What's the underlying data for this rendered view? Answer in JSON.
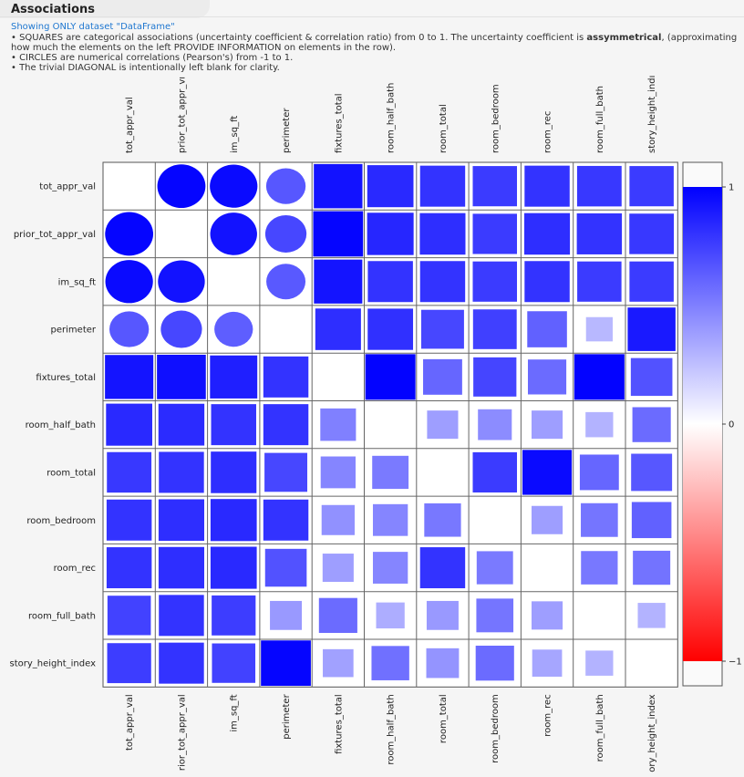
{
  "header": {
    "title": "Associations",
    "subtitle": "Showing ONLY dataset \"DataFrame\"",
    "line1_pre": "• SQUARES are categorical associations (uncertainty coefficient & correlation ratio) from 0 to 1. The uncertainty coefficient is ",
    "line1_bold": "assymmetrical",
    "line1_post": ", (approximating how much the elements on the left PROVIDE INFORMATION on elements in the row).",
    "line2": "• CIRCLES are numerical correlations (Pearson's) from -1 to 1.",
    "line3": "• The trivial DIAGONAL is intentionally left blank for clarity."
  },
  "chart_data": {
    "type": "heatmap",
    "variables": [
      "tot_appr_val",
      "prior_tot_appr_val",
      "im_sq_ft",
      "perimeter",
      "fixtures_total",
      "room_half_bath",
      "room_total",
      "room_bedroom",
      "room_rec",
      "room_full_bath",
      "story_height_index"
    ],
    "top_tick_labels": [
      "tot_appr_val",
      "prior_tot_appr_vı",
      "im_sq_ft",
      "perimeter",
      "fixtures_total",
      "room_half_bath",
      "room_total",
      "room_bedroom",
      "room_rec",
      "room_full_bath",
      "story_height_indı"
    ],
    "bottom_tick_labels": [
      "tot_appr_val",
      "rior_tot_appr_val",
      "im_sq_ft",
      "perimeter",
      "fixtures_total",
      "room_half_bath",
      "room_total",
      "room_bedroom",
      "room_rec",
      "room_full_bath",
      "ory_height_index"
    ],
    "numeric_variables": [
      "tot_appr_val",
      "prior_tot_appr_val",
      "im_sq_ft",
      "perimeter"
    ],
    "values": [
      [
        null,
        0.98,
        0.96,
        0.66,
        0.93,
        0.84,
        0.8,
        0.77,
        0.8,
        0.78,
        0.77
      ],
      [
        0.98,
        null,
        0.93,
        0.72,
        0.98,
        0.85,
        0.82,
        0.77,
        0.82,
        0.8,
        0.78
      ],
      [
        0.96,
        0.93,
        null,
        0.65,
        0.92,
        0.8,
        0.8,
        0.77,
        0.8,
        0.77,
        0.77
      ],
      [
        0.66,
        0.72,
        0.63,
        null,
        0.82,
        0.81,
        0.72,
        0.75,
        0.62,
        0.28,
        0.9
      ],
      [
        0.92,
        0.94,
        0.88,
        0.8,
        null,
        0.99,
        0.6,
        0.73,
        0.58,
        0.99,
        0.68
      ],
      [
        0.84,
        0.83,
        0.8,
        0.8,
        0.5,
        null,
        0.38,
        0.45,
        0.38,
        0.3,
        0.58
      ],
      [
        0.78,
        0.8,
        0.82,
        0.72,
        0.48,
        0.52,
        null,
        0.77,
        0.96,
        0.6,
        0.66
      ],
      [
        0.8,
        0.82,
        0.84,
        0.8,
        0.43,
        0.48,
        0.53,
        null,
        0.38,
        0.54,
        0.62
      ],
      [
        0.8,
        0.82,
        0.84,
        0.68,
        0.38,
        0.48,
        0.8,
        0.52,
        null,
        0.53,
        0.55
      ],
      [
        0.74,
        0.8,
        0.76,
        0.4,
        0.58,
        0.32,
        0.4,
        0.54,
        0.38,
        null,
        0.3
      ],
      [
        0.76,
        0.8,
        0.74,
        0.98,
        0.37,
        0.56,
        0.42,
        0.58,
        0.35,
        0.3,
        null
      ]
    ],
    "colorbar": {
      "min": -1,
      "max": 1,
      "ticks": [
        "1",
        "0",
        "−1"
      ],
      "low_color": "#ff0000",
      "mid_color": "#ffffff",
      "high_color": "#0000ff"
    },
    "legend_placement": "right"
  }
}
